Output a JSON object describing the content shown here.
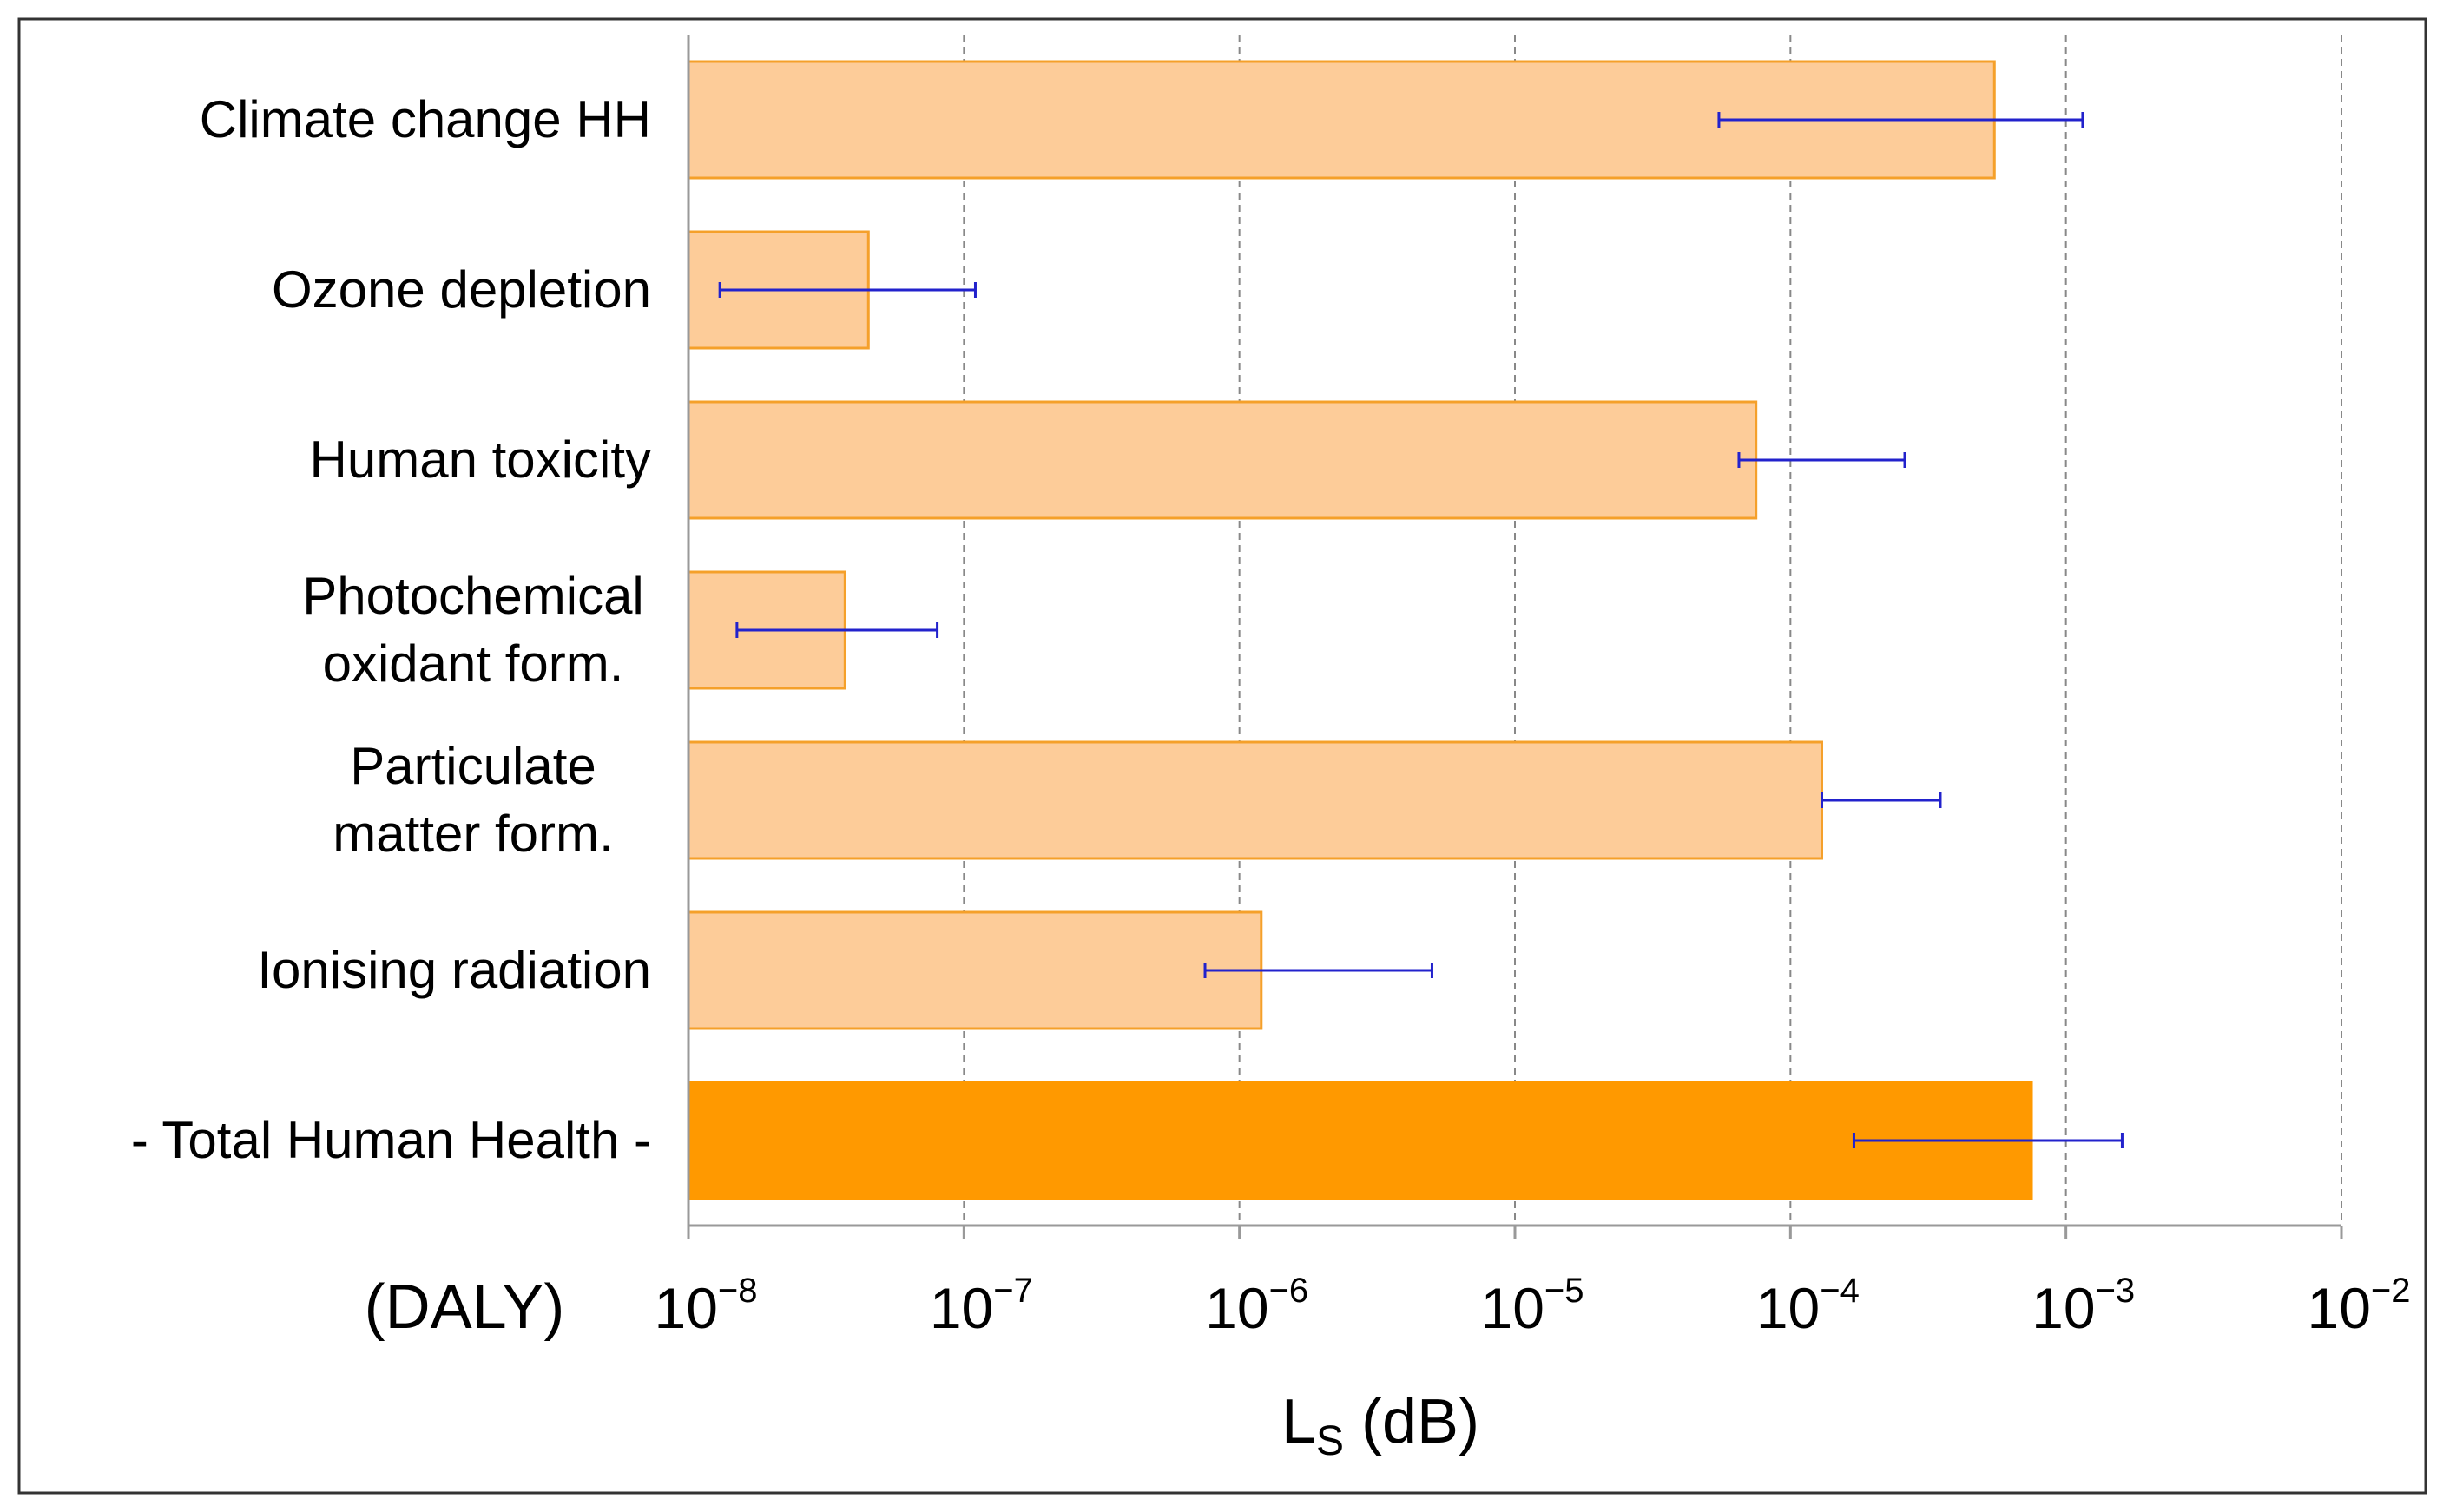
{
  "chart_data": {
    "type": "bar",
    "orientation": "horizontal",
    "x_scale": "log",
    "xlim": [
      1e-08,
      0.01
    ],
    "grid": true,
    "categories": [
      [
        "Climate change HH"
      ],
      [
        "Ozone depletion"
      ],
      [
        "Human toxicity"
      ],
      [
        "Photochemical",
        "oxidant  form."
      ],
      [
        "Particulate",
        "matter form."
      ],
      [
        "Ionising radiation"
      ],
      [
        "- Total Human Health -"
      ]
    ],
    "values": [
      0.00055,
      4.5e-08,
      7.5e-05,
      3.7e-08,
      0.00013,
      1.2e-06,
      0.00075
    ],
    "error_low": [
      5.5e-05,
      1.3e-08,
      6.5e-05,
      1.5e-08,
      0.00013,
      7.5e-07,
      0.00017
    ],
    "error_high": [
      0.00115,
      1.1e-07,
      0.00026,
      8e-08,
      0.00035,
      5e-06,
      0.0016
    ],
    "highlight_index": 6,
    "ticks": [
      {
        "base": "10",
        "exp": "−8"
      },
      {
        "base": "10",
        "exp": "−7"
      },
      {
        "base": "10",
        "exp": "−6"
      },
      {
        "base": "10",
        "exp": "−5"
      },
      {
        "base": "10",
        "exp": "−4"
      },
      {
        "base": "10",
        "exp": "−3"
      },
      {
        "base": "10",
        "exp": "−2"
      }
    ],
    "unit_label": "(DALY)",
    "xlabel": {
      "main": "L",
      "sub": "S",
      "rest": " (dB)"
    },
    "colors": {
      "bar_fill": "#fdcc99",
      "bar_stroke": "#f5a02a",
      "highlight_fill": "#ff9900",
      "error_bar": "#2222cc",
      "grid": "#888888",
      "axis": "#999999"
    }
  }
}
